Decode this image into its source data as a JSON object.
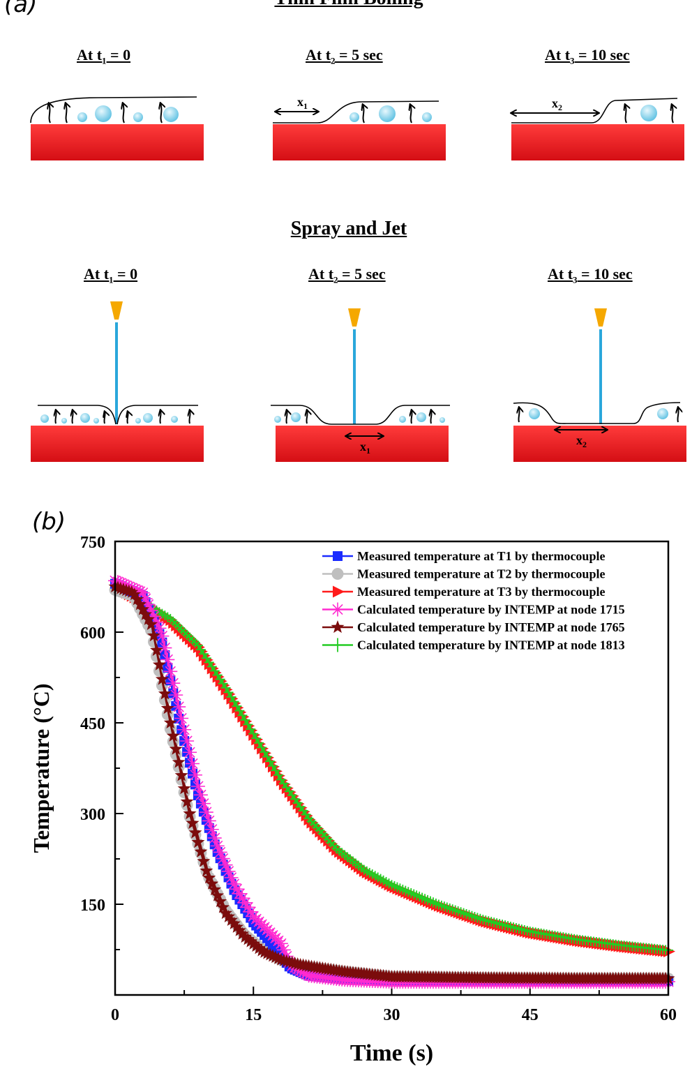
{
  "panel_a": {
    "label": "(a)",
    "top_title": "Thin Film Boiling",
    "bottom_title": "Spray and Jet",
    "stages": [
      {
        "prefix": "At t",
        "sub": "1",
        "suffix": " = 0"
      },
      {
        "prefix": "At t",
        "sub": "2",
        "suffix": " = 5 sec"
      },
      {
        "prefix": "At t",
        "sub": "3",
        "suffix": " = 10 sec"
      }
    ],
    "x1_label": {
      "base": "x",
      "sub": "1"
    },
    "x2_label": {
      "base": "x",
      "sub": "2"
    },
    "colors": {
      "block": "#e8141c",
      "droplet": "#7fd3ea",
      "jet": "#2aa7db",
      "nozzle": "#f5a800"
    }
  },
  "panel_b": {
    "label": "(b)"
  },
  "chart_data": {
    "type": "line",
    "xlabel": "Time (s)",
    "ylabel": "Temperature (°C)",
    "xlim": [
      0,
      60
    ],
    "ylim": [
      0,
      750
    ],
    "xticks": [
      0,
      15,
      30,
      45,
      60
    ],
    "yticks": [
      150,
      300,
      450,
      600,
      750
    ],
    "grid": false,
    "legend_position": "top-right",
    "series": [
      {
        "name": "Measured temperature at T1 by thermocouple",
        "color": "#1a2bff",
        "marker": "square",
        "x": [
          0,
          3,
          5,
          7,
          9,
          11,
          13,
          15,
          17,
          19,
          21,
          25,
          30,
          40,
          50,
          60
        ],
        "y": [
          680,
          660,
          590,
          450,
          330,
          240,
          170,
          120,
          85,
          45,
          32,
          26,
          24,
          24,
          23,
          23
        ]
      },
      {
        "name": "Measured temperature at T2 by thermocouple",
        "color": "#bfbfbf",
        "marker": "circle",
        "x": [
          0,
          2,
          4,
          6,
          8,
          10,
          12,
          14,
          16,
          18,
          20,
          25,
          30,
          40,
          50,
          60
        ],
        "y": [
          670,
          660,
          600,
          440,
          300,
          200,
          140,
          100,
          75,
          58,
          48,
          38,
          30,
          28,
          27,
          27
        ]
      },
      {
        "name": "Measured  temperature at T3 by thermocouple",
        "color": "#ff1a1a",
        "marker": "triangle-right",
        "x": [
          0,
          3,
          6,
          9,
          12,
          15,
          18,
          21,
          24,
          27,
          30,
          35,
          40,
          45,
          50,
          55,
          60
        ],
        "y": [
          675,
          650,
          620,
          575,
          505,
          430,
          355,
          290,
          240,
          205,
          180,
          148,
          122,
          103,
          90,
          80,
          72
        ]
      },
      {
        "name": "Calculated temperature by INTEMP at node 1715",
        "color": "#ff2ad0",
        "marker": "asterisk",
        "x": [
          0,
          3,
          5,
          7,
          9,
          11,
          13,
          15,
          17,
          18,
          19,
          21,
          25,
          30,
          40,
          50,
          60
        ],
        "y": [
          685,
          665,
          600,
          470,
          345,
          250,
          180,
          130,
          100,
          85,
          50,
          32,
          25,
          22,
          22,
          22,
          22
        ]
      },
      {
        "name": "Calculated temperature by INTEMP at node 1765",
        "color": "#7b0c0c",
        "marker": "star",
        "x": [
          0,
          2,
          4,
          6,
          8,
          10,
          12,
          14,
          16,
          18,
          20,
          22,
          25,
          30,
          40,
          50,
          60
        ],
        "y": [
          675,
          665,
          610,
          450,
          305,
          200,
          135,
          97,
          72,
          58,
          50,
          45,
          38,
          30,
          28,
          27,
          27
        ]
      },
      {
        "name": "Calculated temperature by INTEMP at node 1813",
        "color": "#22cc22",
        "marker": "plus",
        "x": [
          0,
          3,
          6,
          9,
          12,
          15,
          18,
          21,
          24,
          27,
          30,
          35,
          40,
          45,
          50,
          55,
          60
        ],
        "y": [
          672,
          650,
          622,
          578,
          508,
          432,
          356,
          292,
          242,
          207,
          182,
          150,
          124,
          105,
          92,
          82,
          74
        ]
      }
    ]
  }
}
